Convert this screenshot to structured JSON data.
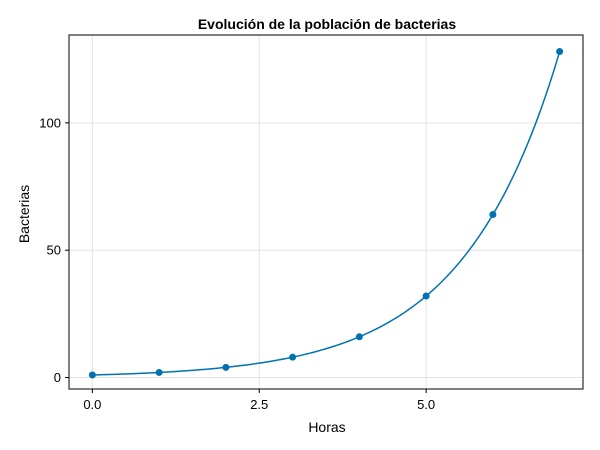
{
  "chart_data": {
    "type": "line",
    "title": "Evolución de la población de bacterias",
    "xlabel": "Horas",
    "ylabel": "Bacterias",
    "xlim": [
      -0.35,
      7.35
    ],
    "ylim": [
      -4.5,
      134.5
    ],
    "xticks": [
      0.0,
      2.5,
      5.0
    ],
    "xtick_labels": [
      "0.0",
      "2.5",
      "5.0"
    ],
    "yticks": [
      0,
      50,
      100
    ],
    "ytick_labels": [
      "0",
      "50",
      "100"
    ],
    "grid": true,
    "series": [
      {
        "color": "#0072b2",
        "x": [
          0,
          1,
          2,
          3,
          4,
          5,
          6,
          7
        ],
        "y": [
          1,
          2,
          4,
          8,
          16,
          32,
          64,
          128
        ]
      }
    ]
  }
}
